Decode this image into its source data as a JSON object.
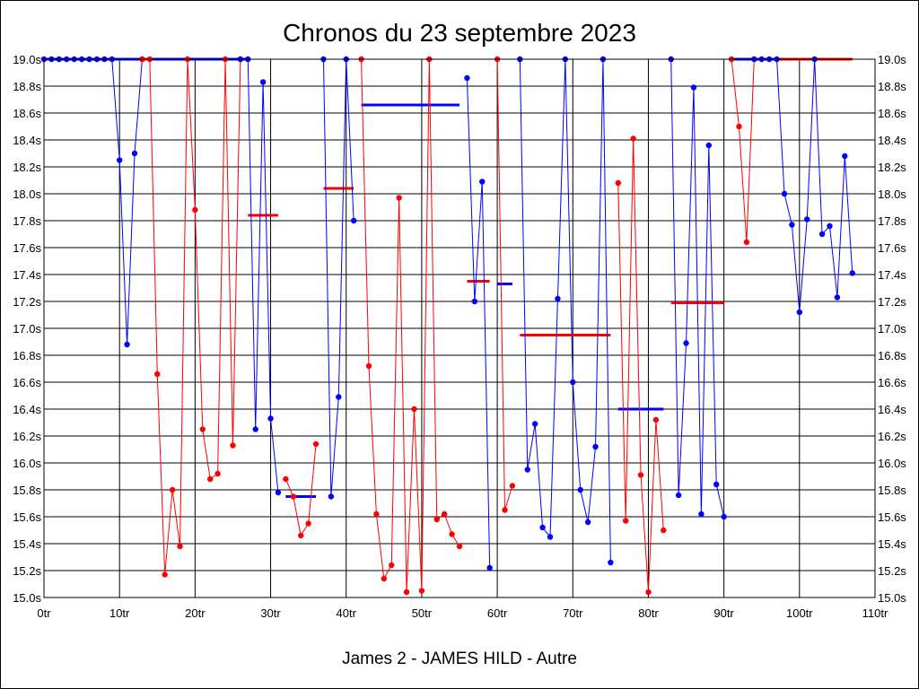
{
  "chart_data": {
    "type": "line",
    "title": "Chronos du 23 septembre 2023",
    "subtitle": "James 2 - JAMES HILD - Autre",
    "xlim": [
      0,
      110
    ],
    "ylim": [
      15.0,
      19.0
    ],
    "x_ticks": [
      0,
      10,
      20,
      30,
      40,
      50,
      60,
      70,
      80,
      90,
      100,
      110
    ],
    "x_tick_labels": [
      "0tr",
      "10tr",
      "20tr",
      "30tr",
      "40tr",
      "50tr",
      "60tr",
      "70tr",
      "80tr",
      "90tr",
      "100tr",
      "110tr"
    ],
    "y_ticks": [
      15.0,
      15.2,
      15.4,
      15.6,
      15.8,
      16.0,
      16.2,
      16.4,
      16.6,
      16.8,
      17.0,
      17.2,
      17.4,
      17.6,
      17.8,
      18.0,
      18.2,
      18.4,
      18.6,
      18.8,
      19.0
    ],
    "y_tick_labels": [
      "15.0s",
      "15.2s",
      "15.4s",
      "15.6s",
      "15.8s",
      "16.0s",
      "16.2s",
      "16.4s",
      "16.6s",
      "16.8s",
      "17.0s",
      "17.2s",
      "17.4s",
      "17.6s",
      "17.8s",
      "18.0s",
      "18.2s",
      "18.4s",
      "18.6s",
      "18.8s",
      "19.0s"
    ],
    "grid": true,
    "series": [
      {
        "color": "#0000ff",
        "points": [
          [
            0,
            19.0
          ],
          [
            1,
            19.0
          ],
          [
            2,
            19.0
          ],
          [
            3,
            19.0
          ],
          [
            4,
            19.0
          ],
          [
            5,
            19.0
          ],
          [
            6,
            19.0
          ],
          [
            7,
            19.0
          ],
          [
            8,
            19.0
          ],
          [
            9,
            19.0
          ],
          [
            10,
            18.25
          ],
          [
            11,
            16.88
          ],
          [
            12,
            18.3
          ],
          [
            13,
            19.0
          ]
        ]
      },
      {
        "color": "#ff0000",
        "points": [
          [
            13,
            19.0
          ],
          [
            14,
            19.0
          ],
          [
            15,
            16.66
          ],
          [
            16,
            15.17
          ],
          [
            17,
            15.8
          ],
          [
            18,
            15.38
          ],
          [
            19,
            19.0
          ],
          [
            20,
            17.88
          ],
          [
            21,
            16.25
          ],
          [
            22,
            15.88
          ],
          [
            23,
            15.92
          ],
          [
            24,
            19.0
          ],
          [
            25,
            16.13
          ],
          [
            26,
            19.0
          ]
        ]
      },
      {
        "color": "#0000ff",
        "points": [
          [
            26,
            19.0
          ],
          [
            27,
            19.0
          ],
          [
            28,
            16.25
          ],
          [
            29,
            18.83
          ],
          [
            30,
            16.33
          ],
          [
            31,
            15.78
          ]
        ]
      },
      {
        "color": "#ff0000",
        "points": [
          [
            32,
            15.88
          ],
          [
            33,
            15.75
          ],
          [
            34,
            15.46
          ],
          [
            35,
            15.55
          ],
          [
            36,
            16.14
          ]
        ]
      },
      {
        "color": "#0000ff",
        "points": [
          [
            37,
            19.0
          ],
          [
            38,
            15.75
          ],
          [
            39,
            16.49
          ],
          [
            40,
            19.0
          ],
          [
            41,
            17.8
          ]
        ]
      },
      {
        "color": "#ff0000",
        "points": [
          [
            42,
            19.0
          ],
          [
            43,
            16.72
          ],
          [
            44,
            15.62
          ],
          [
            45,
            15.14
          ],
          [
            46,
            15.24
          ],
          [
            47,
            17.97
          ],
          [
            48,
            15.04
          ],
          [
            49,
            16.4
          ],
          [
            50,
            15.05
          ],
          [
            51,
            19.0
          ],
          [
            52,
            15.58
          ],
          [
            53,
            15.62
          ],
          [
            54,
            15.47
          ],
          [
            55,
            15.38
          ]
        ]
      },
      {
        "color": "#0000ff",
        "points": [
          [
            56,
            18.86
          ],
          [
            57,
            17.2
          ],
          [
            58,
            18.09
          ],
          [
            59,
            15.22
          ]
        ]
      },
      {
        "color": "#ff0000",
        "points": [
          [
            60,
            19.0
          ],
          [
            61,
            15.65
          ],
          [
            62,
            15.83
          ]
        ]
      },
      {
        "color": "#0000ff",
        "points": [
          [
            63,
            19.0
          ],
          [
            64,
            15.95
          ],
          [
            65,
            16.29
          ],
          [
            66,
            15.52
          ],
          [
            67,
            15.45
          ],
          [
            68,
            17.22
          ],
          [
            69,
            19.0
          ],
          [
            70,
            16.6
          ],
          [
            71,
            15.8
          ],
          [
            72,
            15.56
          ],
          [
            73,
            16.12
          ],
          [
            74,
            19.0
          ],
          [
            75,
            15.26
          ]
        ]
      },
      {
        "color": "#ff0000",
        "points": [
          [
            76,
            18.08
          ],
          [
            77,
            15.57
          ],
          [
            78,
            18.41
          ],
          [
            79,
            15.91
          ],
          [
            80,
            15.04
          ],
          [
            81,
            16.32
          ],
          [
            82,
            15.5
          ]
        ]
      },
      {
        "color": "#0000ff",
        "points": [
          [
            83,
            19.0
          ],
          [
            84,
            15.76
          ],
          [
            85,
            16.89
          ],
          [
            86,
            18.79
          ],
          [
            87,
            15.62
          ],
          [
            88,
            18.36
          ],
          [
            89,
            15.84
          ],
          [
            90,
            15.6
          ]
        ]
      },
      {
        "color": "#ff0000",
        "points": [
          [
            91,
            19.0
          ],
          [
            92,
            18.5
          ],
          [
            93,
            17.64
          ],
          [
            94,
            19.0
          ]
        ]
      },
      {
        "color": "#0000ff",
        "points": [
          [
            94,
            19.0
          ],
          [
            95,
            19.0
          ],
          [
            96,
            19.0
          ],
          [
            97,
            19.0
          ],
          [
            98,
            18.0
          ],
          [
            99,
            17.77
          ],
          [
            100,
            17.12
          ],
          [
            101,
            17.81
          ],
          [
            102,
            19.0
          ],
          [
            103,
            17.7
          ],
          [
            104,
            17.76
          ],
          [
            105,
            17.23
          ],
          [
            106,
            18.28
          ],
          [
            107,
            17.41
          ]
        ]
      }
    ],
    "averages": [
      {
        "color": "#0000ff",
        "x_start": 0,
        "x_end": 13,
        "value": 19.0
      },
      {
        "color": "#ff0000",
        "x_start": 13,
        "x_end": 14,
        "value": 19.0
      },
      {
        "color": "#0000ff",
        "x_start": 14,
        "x_end": 27,
        "value": 19.0
      },
      {
        "color": "#ff0000",
        "x_start": 27,
        "x_end": 31,
        "value": 17.84
      },
      {
        "color": "#0000ff",
        "x_start": 32,
        "x_end": 36,
        "value": 15.75
      },
      {
        "color": "#ff0000",
        "x_start": 37,
        "x_end": 41,
        "value": 18.04
      },
      {
        "color": "#0000ff",
        "x_start": 42,
        "x_end": 55,
        "value": 18.66
      },
      {
        "color": "#ff0000",
        "x_start": 56,
        "x_end": 59,
        "value": 17.35
      },
      {
        "color": "#0000ff",
        "x_start": 60,
        "x_end": 62,
        "value": 17.33
      },
      {
        "color": "#ff0000",
        "x_start": 63,
        "x_end": 75,
        "value": 16.95
      },
      {
        "color": "#0000ff",
        "x_start": 76,
        "x_end": 82,
        "value": 16.4
      },
      {
        "color": "#ff0000",
        "x_start": 83,
        "x_end": 90,
        "value": 17.19
      },
      {
        "color": "#0000ff",
        "x_start": 91,
        "x_end": 97,
        "value": 19.0
      },
      {
        "color": "#ff0000",
        "x_start": 97,
        "x_end": 107,
        "value": 19.0
      }
    ]
  }
}
